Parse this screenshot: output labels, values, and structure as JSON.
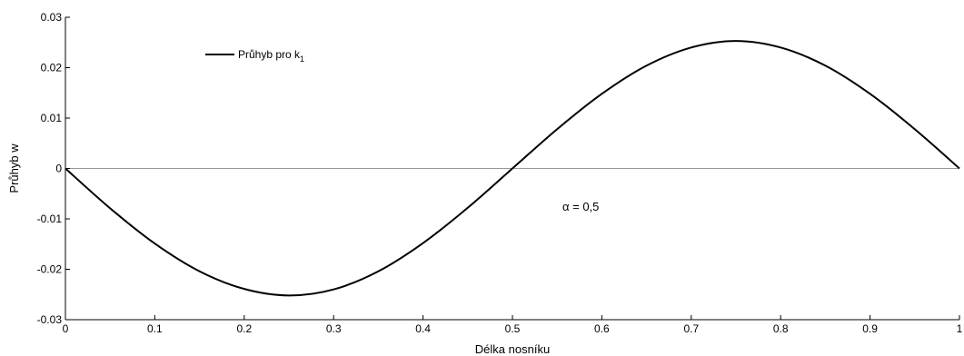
{
  "chart_data": {
    "type": "line",
    "xlabel": "Délka nosníku",
    "ylabel": "Průhyb w",
    "xlim": [
      0,
      1
    ],
    "ylim": [
      -0.03,
      0.03
    ],
    "xticks": [
      "0",
      "0.1",
      "0.2",
      "0.3",
      "0.4",
      "0.5",
      "0.6",
      "0.7",
      "0.8",
      "0.9",
      "1"
    ],
    "yticks": [
      "-0.03",
      "-0.02",
      "-0.01",
      "0",
      "0.01",
      "0.02",
      "0.03"
    ],
    "grid": false,
    "legend_placement": "top-left",
    "series": [
      {
        "name_main": "Průhyb pro k",
        "name_sub": "1",
        "color": "#000000",
        "x": [
          0,
          0.05,
          0.1,
          0.15,
          0.2,
          0.25,
          0.3,
          0.35,
          0.4,
          0.45,
          0.5,
          0.55,
          0.6,
          0.65,
          0.7,
          0.75,
          0.8,
          0.85,
          0.9,
          0.95,
          1
        ],
        "y": [
          0,
          -0.0079,
          -0.0149,
          -0.0204,
          -0.0239,
          -0.0252,
          -0.024,
          -0.0204,
          -0.0148,
          -0.0078,
          0,
          0.0078,
          0.0148,
          0.0204,
          0.024,
          0.0253,
          0.024,
          0.0204,
          0.0148,
          0.0078,
          0
        ]
      }
    ],
    "reference_line": {
      "y": 0,
      "color": "#999999"
    },
    "annotation": {
      "prefix": "α",
      "text": " = 0,5",
      "x": 0.5,
      "y": -0.0075
    }
  }
}
